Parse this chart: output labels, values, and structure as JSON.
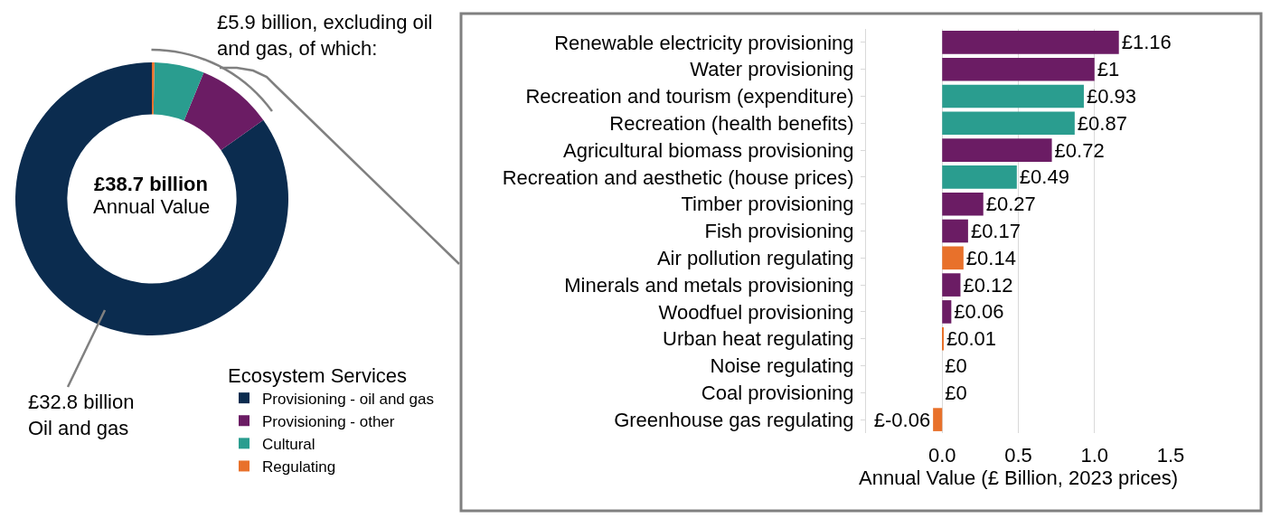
{
  "chart_data": [
    {
      "type": "donut",
      "categories": [
        "Provisioning - oil and gas",
        "Provisioning - other",
        "Cultural",
        "Regulating"
      ],
      "values": [
        84.8,
        9.0,
        5.9,
        0.3
      ],
      "colors": [
        "#0b2c4f",
        "#6b1c64",
        "#2a9d8f",
        "#e8712b"
      ],
      "legend_title": "Ecosystem Services",
      "legend": "bottom right",
      "annotations": [
        "£38.7 billion",
        "Annual Value",
        "£5.9 billion, excluding oil\nand gas, of which:",
        "£32.8 billion\nOil and gas"
      ]
    },
    {
      "type": "bar",
      "orientation": "horizontal",
      "categories": [
        "Renewable electricity provisioning",
        "Water provisioning",
        "Recreation and tourism (expenditure)",
        "Recreation (health benefits)",
        "Agricultural biomass provisioning",
        "Recreation and aesthetic (house prices)",
        "Timber provisioning",
        "Fish provisioning",
        "Air pollution regulating",
        "Minerals and metals provisioning",
        "Woodfuel provisioning",
        "Urban heat regulating",
        "Noise regulating",
        "Coal provisioning",
        "Greenhouse gas regulating"
      ],
      "values": [
        1.16,
        1,
        0.93,
        0.87,
        0.72,
        0.49,
        0.27,
        0.17,
        0.14,
        0.12,
        0.06,
        0.01,
        0,
        0,
        -0.06
      ],
      "colors": [
        "#6b1c64",
        "#6b1c64",
        "#2a9d8f",
        "#2a9d8f",
        "#6b1c64",
        "#2a9d8f",
        "#6b1c64",
        "#6b1c64",
        "#e8712b",
        "#6b1c64",
        "#6b1c64",
        "#e8712b",
        "#e8712b",
        "#6b1c64",
        "#e8712b"
      ],
      "value_labels": [
        "£1.16",
        "£1",
        "£0.93",
        "£0.87",
        "£0.72",
        "£0.49",
        "£0.27",
        "£0.17",
        "£0.14",
        "£0.12",
        "£0.06",
        "£0.01",
        "£0",
        "£0",
        "£-0.06"
      ],
      "xlabel": "Annual Value (£ Billion, 2023 prices)",
      "xlim": [
        -0.5,
        1.5
      ],
      "xticks": [
        {
          "value": 0,
          "label": "0.0"
        },
        {
          "value": 0.5,
          "label": "0.5"
        },
        {
          "value": 1,
          "label": "1.0"
        },
        {
          "value": 1.5,
          "label": "1.5"
        }
      ],
      "grid": "x"
    }
  ]
}
